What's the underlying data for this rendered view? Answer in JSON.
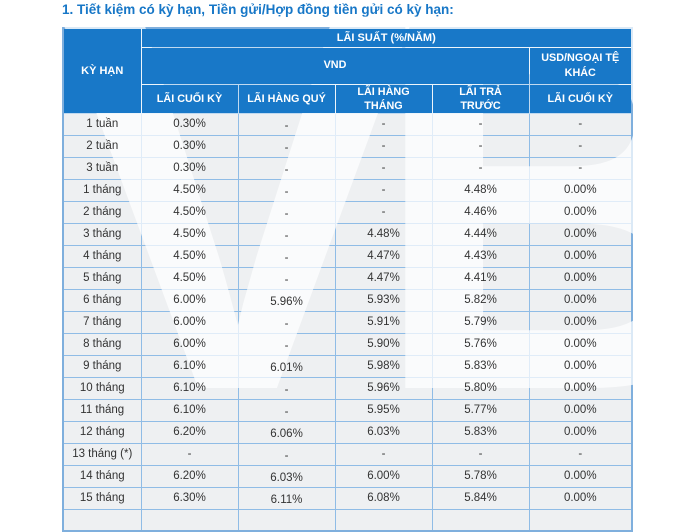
{
  "title": "1. Tiết kiệm có kỳ hạn, Tiền gửi/Hợp đồng tiền gửi có kỳ hạn:",
  "watermark": "VB",
  "colors": {
    "header_bg": "#1878C8",
    "header_text": "#FFFFFF",
    "title_text": "#1777C7",
    "cell_bg": "#EEF0F2",
    "cell_text": "#333333",
    "border": "#8FBCE6",
    "outer_border": "#7FAFDD"
  },
  "table": {
    "header": {
      "term": "KỲ HẠN",
      "rate_group": "LÃI SUẤT (%/NĂM)",
      "vnd_group": "VND",
      "usd_group": "USD/NGOẠI TỆ\nKHÁC",
      "columns": [
        "LÃI CUỐI KỲ",
        "LÃI HÀNG QUÝ",
        "LÃI HÀNG\nTHÁNG",
        "LÃI TRẢ\nTRƯỚC",
        "LÃI CUỐI KỲ"
      ]
    },
    "rows": [
      {
        "term": "1 tuần",
        "values": [
          "0.30%",
          "-",
          "-",
          "-",
          "-"
        ]
      },
      {
        "term": "2 tuần",
        "values": [
          "0.30%",
          "-",
          "-",
          "-",
          "-"
        ]
      },
      {
        "term": "3 tuần",
        "values": [
          "0.30%",
          "-",
          "-",
          "-",
          "-"
        ]
      },
      {
        "term": "1 tháng",
        "values": [
          "4.50%",
          "-",
          "-",
          "4.48%",
          "0.00%"
        ]
      },
      {
        "term": "2 tháng",
        "values": [
          "4.50%",
          "-",
          "-",
          "4.46%",
          "0.00%"
        ]
      },
      {
        "term": "3 tháng",
        "values": [
          "4.50%",
          "-",
          "4.48%",
          "4.44%",
          "0.00%"
        ]
      },
      {
        "term": "4 tháng",
        "values": [
          "4.50%",
          "-",
          "4.47%",
          "4.43%",
          "0.00%"
        ]
      },
      {
        "term": "5 tháng",
        "values": [
          "4.50%",
          "-",
          "4.47%",
          "4.41%",
          "0.00%"
        ]
      },
      {
        "term": "6 tháng",
        "values": [
          "6.00%",
          "5.96%",
          "5.93%",
          "5.82%",
          "0.00%"
        ]
      },
      {
        "term": "7 tháng",
        "values": [
          "6.00%",
          "-",
          "5.91%",
          "5.79%",
          "0.00%"
        ]
      },
      {
        "term": "8 tháng",
        "values": [
          "6.00%",
          "-",
          "5.90%",
          "5.76%",
          "0.00%"
        ]
      },
      {
        "term": "9 tháng",
        "values": [
          "6.10%",
          "6.01%",
          "5.98%",
          "5.83%",
          "0.00%"
        ]
      },
      {
        "term": "10 tháng",
        "values": [
          "6.10%",
          "-",
          "5.96%",
          "5.80%",
          "0.00%"
        ]
      },
      {
        "term": "11 tháng",
        "values": [
          "6.10%",
          "-",
          "5.95%",
          "5.77%",
          "0.00%"
        ]
      },
      {
        "term": "12 tháng",
        "values": [
          "6.20%",
          "6.06%",
          "6.03%",
          "5.83%",
          "0.00%"
        ]
      },
      {
        "term": "13 tháng (*)",
        "values": [
          "-",
          "-",
          "-",
          "-",
          "-"
        ]
      },
      {
        "term": "14 tháng",
        "values": [
          "6.20%",
          "6.03%",
          "6.00%",
          "5.78%",
          "0.00%"
        ]
      },
      {
        "term": "15 tháng",
        "values": [
          "6.30%",
          "6.11%",
          "6.08%",
          "5.84%",
          "0.00%"
        ]
      }
    ]
  }
}
